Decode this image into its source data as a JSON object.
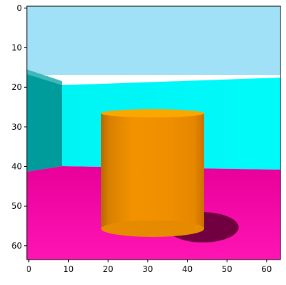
{
  "image": {
    "kind": "rendered 3D scene displayed in an image plot",
    "scene": {
      "object": "orange cylinder",
      "walls": "cyan",
      "floor": "magenta",
      "sky_band": "light blue"
    },
    "colors": {
      "sky": "#a0e1f8",
      "wall_left": "#009c9c",
      "wall_left_top": "#40b8b8",
      "wall_back": "#00f8f8",
      "floor": "#f0009c",
      "floor_near": "#ff18b8",
      "cylinder_main": "#f09000",
      "cylinder_light": "#f8a000",
      "cylinder_dark": "#c87000",
      "cylinder_top": "#f8a800",
      "shadow": "#700040",
      "axis": "#000000"
    }
  },
  "axes": {
    "x_range": [
      0,
      64
    ],
    "y_range": [
      64,
      0
    ],
    "x_ticks": [
      "0",
      "10",
      "20",
      "30",
      "40",
      "50",
      "60"
    ],
    "y_ticks": [
      "0",
      "10",
      "20",
      "30",
      "40",
      "50",
      "60"
    ]
  }
}
